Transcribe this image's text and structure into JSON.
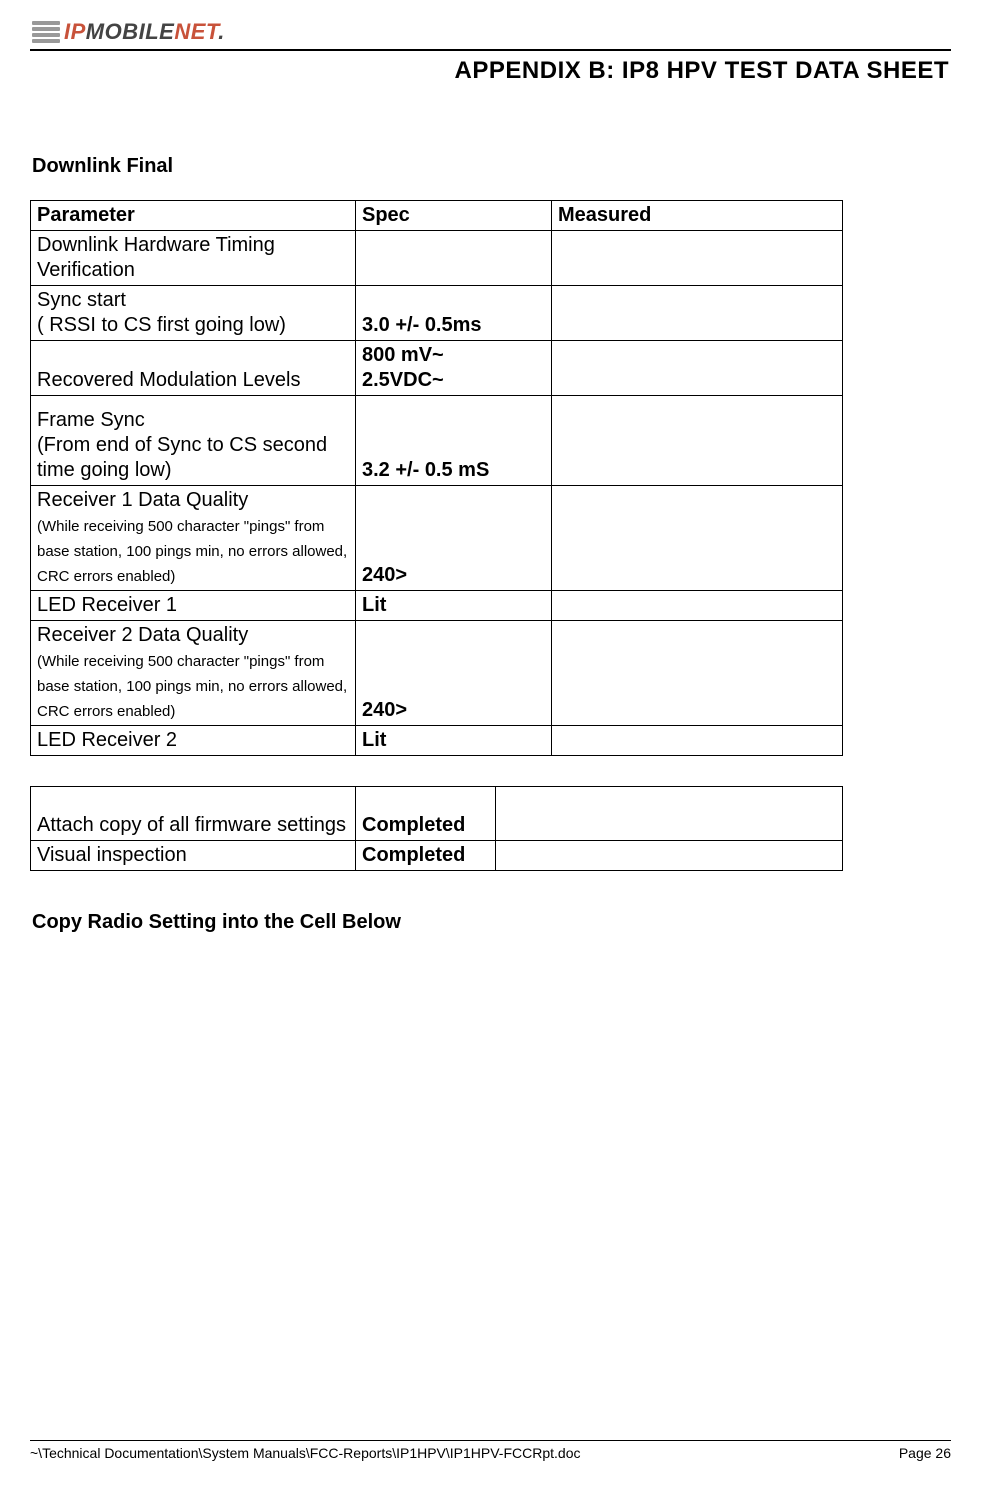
{
  "logo": {
    "ip": "IP",
    "mobile": "MOBILE",
    "net": "NET",
    "sub": "."
  },
  "header": {
    "appendix_title": "APPENDIX B:  IP8 HPV TEST DATA SHEET"
  },
  "section1": {
    "title": "Downlink Final"
  },
  "table1": {
    "headers": {
      "parameter": "Parameter",
      "spec": "Spec",
      "measured": "Measured"
    },
    "rows": [
      {
        "param": "Downlink Hardware Timing Verification",
        "sub": "",
        "spec": "",
        "measured": ""
      },
      {
        "param": "Sync start",
        "sub": "( RSSI to CS first going low)",
        "spec": "3.0 +/- 0.5ms",
        "measured": ""
      },
      {
        "param": "Recovered Modulation Levels",
        "sub": "",
        "spec": "800 mV~\n2.5VDC~",
        "measured": ""
      },
      {
        "param": "Frame Sync",
        "sub": "(From end of Sync to CS second time going low)",
        "spec": "3.2 +/- 0.5 mS",
        "measured": ""
      },
      {
        "param": "Receiver 1  Data Quality",
        "sub": "(While receiving 500 character \"pings\" from base station, 100 pings min, no errors allowed, CRC errors enabled)",
        "spec": "240>",
        "measured": ""
      },
      {
        "param": "LED Receiver 1",
        "sub": "",
        "spec": "Lit",
        "measured": ""
      },
      {
        "param": "Receiver 2 Data Quality",
        "sub": "(While receiving 500 character \"pings\" from base station, 100 pings min, no errors allowed, CRC errors enabled)",
        "spec": "240>",
        "measured": ""
      },
      {
        "param": "LED Receiver 2",
        "sub": "",
        "spec": "Lit",
        "measured": ""
      }
    ]
  },
  "table2": {
    "rows": [
      {
        "param": "Attach copy of all firmware settings",
        "spec": "Completed",
        "measured": ""
      },
      {
        "param": "Visual inspection",
        "spec": "Completed",
        "measured": ""
      }
    ]
  },
  "section2": {
    "title": "Copy Radio Setting into the Cell Below"
  },
  "footer": {
    "path": "~\\Technical Documentation\\System Manuals\\FCC-Reports\\IP1HPV\\IP1HPV-FCCRpt.doc",
    "page": "Page 26"
  }
}
